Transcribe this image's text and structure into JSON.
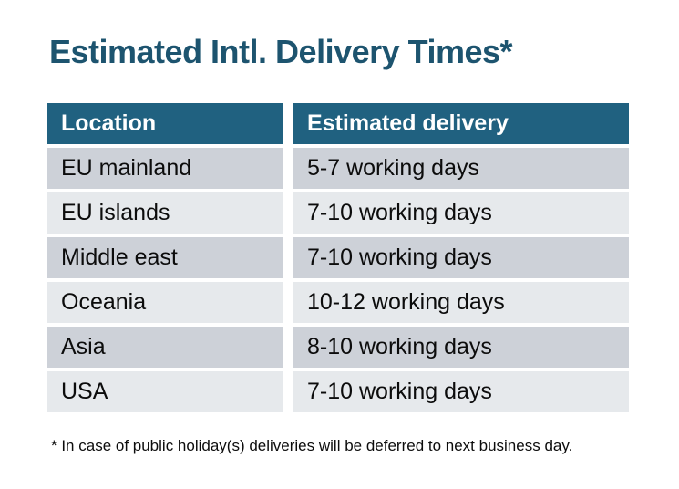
{
  "page": {
    "title": "Estimated Intl. Delivery Times*",
    "footnote": "* In case of public holiday(s) deliveries will be deferred to next business day."
  },
  "chart_data": {
    "type": "table",
    "title": "Estimated Intl. Delivery Times*",
    "columns": [
      "Location",
      "Estimated delivery"
    ],
    "rows": [
      [
        "EU mainland",
        "5-7 working days"
      ],
      [
        "EU islands",
        "7-10 working days"
      ],
      [
        "Middle east",
        "7-10 working days"
      ],
      [
        "Oceania",
        "10-12 working days"
      ],
      [
        "Asia",
        "8-10 working days"
      ],
      [
        "USA",
        "7-10 working days"
      ]
    ],
    "footnote": "* In case of public holiday(s) deliveries will be deferred to next business day.",
    "layout_hints": {
      "row_striping": [
        "dark",
        "light",
        "dark",
        "light",
        "dark",
        "light"
      ],
      "grid": "off",
      "header_style": "solid-fill"
    }
  },
  "colors": {
    "background": "#FFFFFF",
    "header_bg": "#206180",
    "header_text": "#FFFFFF",
    "title_text": "#1D546F",
    "row_dark": "#CDD1D8",
    "row_light": "#E6E9EC",
    "body_text": "#0C0C0C"
  }
}
